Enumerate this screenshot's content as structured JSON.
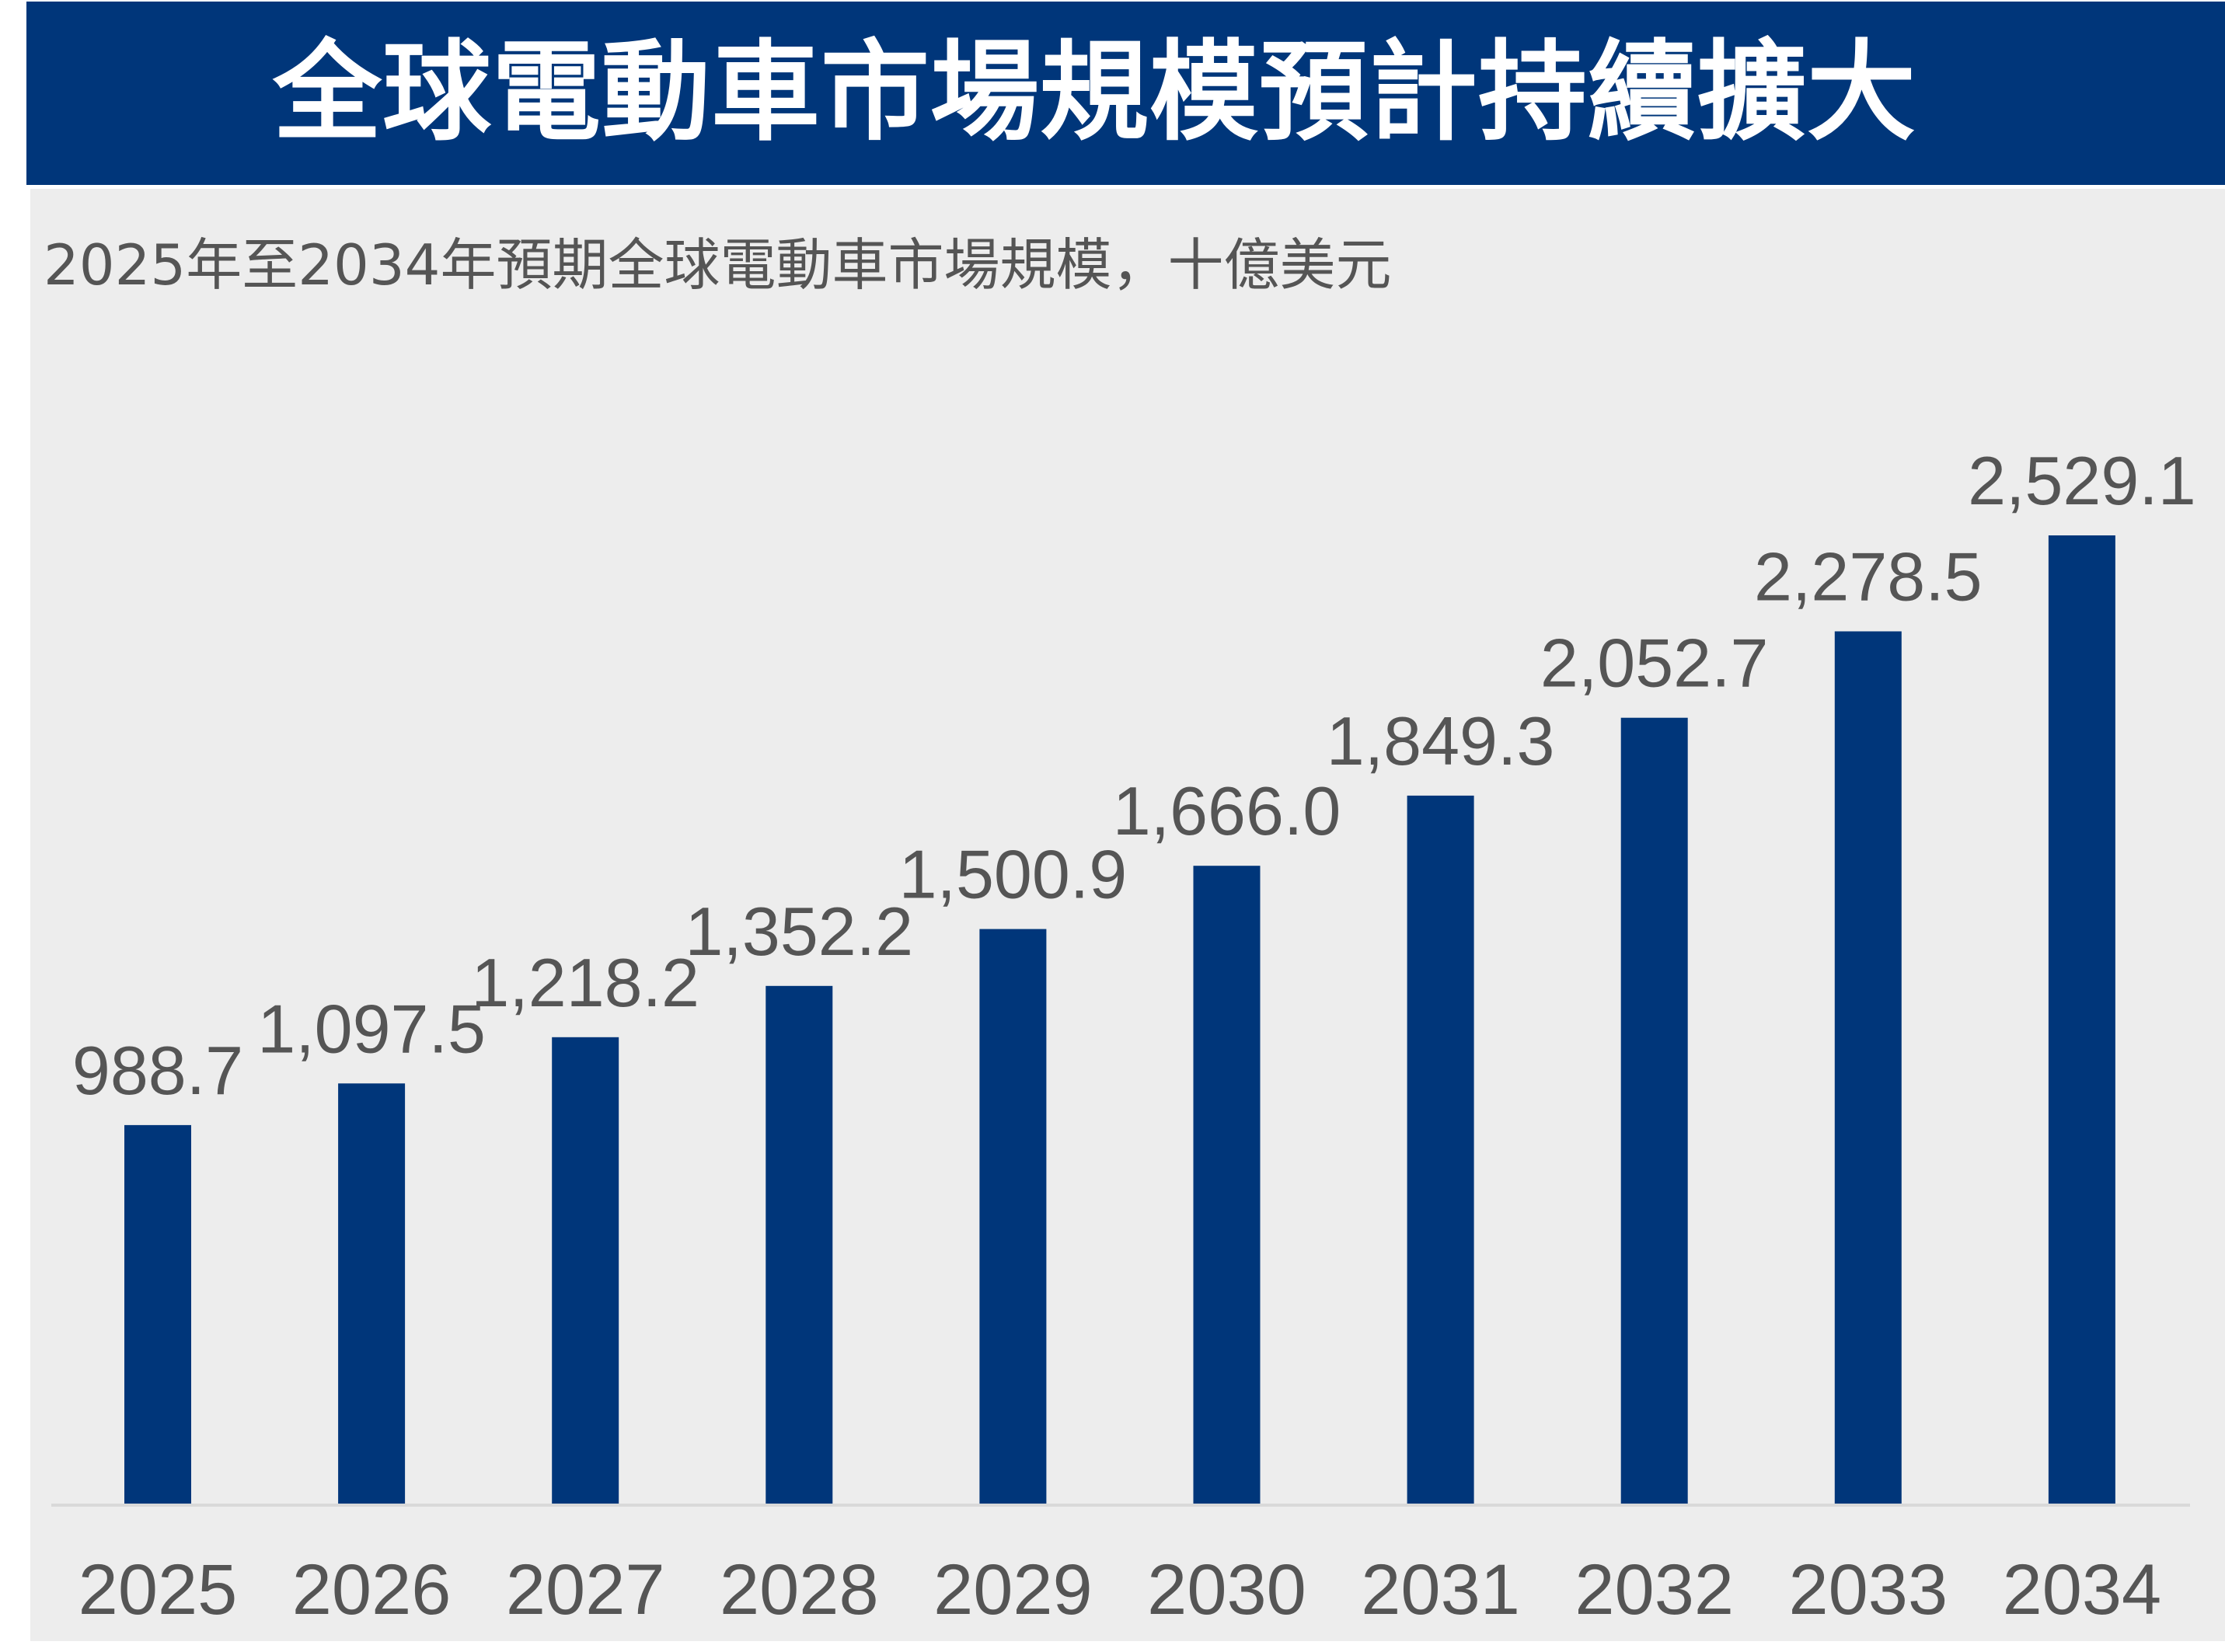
{
  "title": "全球電動車市場規模預計持續擴大",
  "colors": {
    "bar": "#00367A",
    "title_bg": "#00367A",
    "panel_bg": "#EDEDED",
    "text": "#555555",
    "axis": "#D9D9D9"
  },
  "chart_data": {
    "type": "bar",
    "title": "全球電動車市場規模預計持續擴大",
    "subtitle": "2025年至2034年預期全球電動車市場規模，十億美元",
    "xlabel": "",
    "ylabel": "",
    "categories": [
      "2025",
      "2026",
      "2027",
      "2028",
      "2029",
      "2030",
      "2031",
      "2032",
      "2033",
      "2034"
    ],
    "values": [
      988.7,
      1097.5,
      1218.2,
      1352.2,
      1500.9,
      1666.0,
      1849.3,
      2052.7,
      2278.5,
      2529.1
    ],
    "value_labels": [
      "988.7",
      "1,097.5",
      "1,218.2",
      "1,352.2",
      "1,500.9",
      "1,666.0",
      "1,849.3",
      "2,052.7",
      "2,278.5",
      "2,529.1"
    ],
    "ylim": [
      0,
      2529.1
    ],
    "grid": false,
    "legend": "none"
  }
}
